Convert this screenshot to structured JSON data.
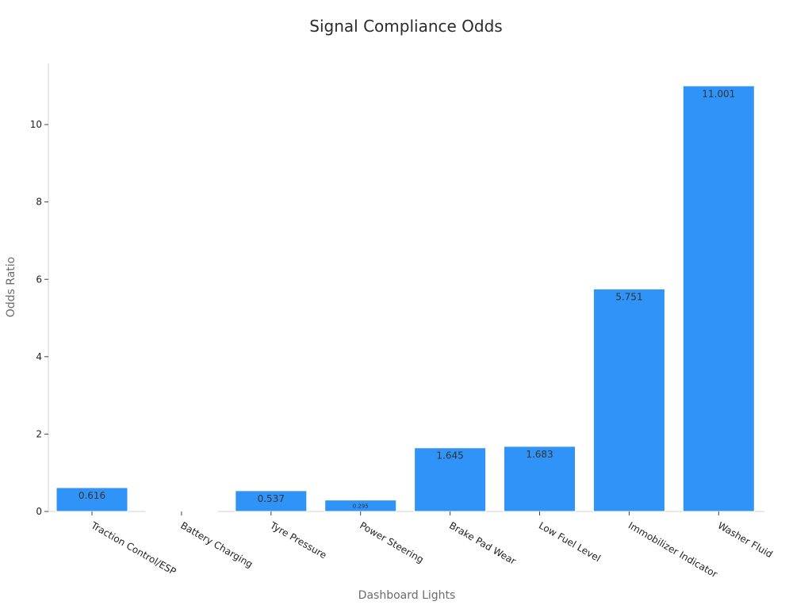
{
  "chart_data": {
    "type": "bar",
    "title": "Signal Compliance Odds",
    "xlabel": "Dashboard Lights",
    "ylabel": "Odds Ratio",
    "categories": [
      "Traction Control/ESP",
      "Battery Charging",
      "Tyre Pressure",
      "Power Steering",
      "Brake Pad Wear",
      "Low Fuel Level",
      "Immobilizer Indicator",
      "Washer Fluid"
    ],
    "values": [
      0.616,
      0.007,
      0.537,
      0.295,
      1.645,
      1.683,
      5.751,
      11.001
    ],
    "data_labels": [
      "0.616",
      "",
      "0.537",
      "0.295",
      "1.645",
      "1.683",
      "5.751",
      "11.001"
    ],
    "ylim": [
      0,
      11.58
    ],
    "yticks": [
      0,
      2,
      4,
      6,
      8,
      10
    ],
    "grid": false,
    "legend": "none",
    "colors": {
      "bar": "#2f93f7",
      "bar_edge": "#ffffff"
    }
  }
}
